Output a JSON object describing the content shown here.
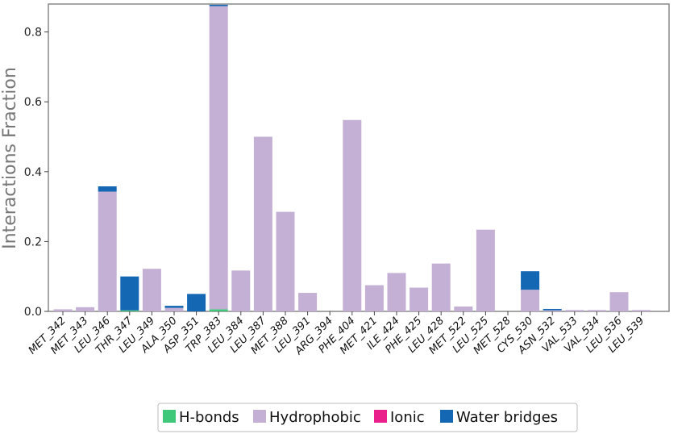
{
  "chart_data": {
    "type": "bar",
    "stacked": true,
    "ylabel": "Interactions Fraction",
    "xlabel": "",
    "ylim": [
      0,
      0.88
    ],
    "yticks": [
      "0.0",
      "0.2",
      "0.4",
      "0.6",
      "0.8"
    ],
    "grid": false,
    "legend_position": "bottom-center",
    "categories": [
      "MET_342",
      "MET_343",
      "LEU_346",
      "THR_347",
      "LEU_349",
      "ALA_350",
      "ASP_351",
      "TRP_383",
      "LEU_384",
      "LEU_387",
      "MET_388",
      "LEU_391",
      "ARG_394",
      "PHE_404",
      "MET_421",
      "ILE_424",
      "PHE_425",
      "LEU_428",
      "MET_522",
      "LEU_525",
      "MET_528",
      "CYS_530",
      "ASN_532",
      "VAL_533",
      "VAL_534",
      "LEU_536",
      "LEU_539"
    ],
    "series": [
      {
        "name": "H-bonds",
        "color": "#3fc87a",
        "values": [
          0,
          0,
          0,
          0.003,
          0,
          0,
          0,
          0.006,
          0,
          0,
          0,
          0,
          0,
          0,
          0,
          0,
          0,
          0,
          0,
          0,
          0,
          0,
          0,
          0,
          0,
          0,
          0
        ]
      },
      {
        "name": "Hydrophobic",
        "color": "#c5b0d5",
        "values": [
          0.006,
          0.012,
          0.343,
          0,
          0.122,
          0.01,
          0,
          0.868,
          0.117,
          0.5,
          0.285,
          0.053,
          0,
          0.548,
          0.075,
          0.11,
          0.068,
          0.137,
          0.014,
          0.234,
          0,
          0.062,
          0.003,
          0.004,
          0.004,
          0.055,
          0.004
        ]
      },
      {
        "name": "Ionic",
        "color": "#ea1f8c",
        "values": [
          0,
          0,
          0,
          0,
          0,
          0,
          0,
          0,
          0,
          0,
          0,
          0,
          0,
          0,
          0,
          0,
          0,
          0,
          0,
          0,
          0,
          0,
          0,
          0,
          0,
          0,
          0
        ]
      },
      {
        "name": "Water bridges",
        "color": "#1467b3",
        "values": [
          0,
          0,
          0.015,
          0.097,
          0,
          0.006,
          0.05,
          0.004,
          0,
          0,
          0,
          0,
          0,
          0,
          0,
          0,
          0,
          0,
          0,
          0,
          0,
          0.053,
          0.004,
          0,
          0,
          0,
          0
        ]
      }
    ]
  }
}
